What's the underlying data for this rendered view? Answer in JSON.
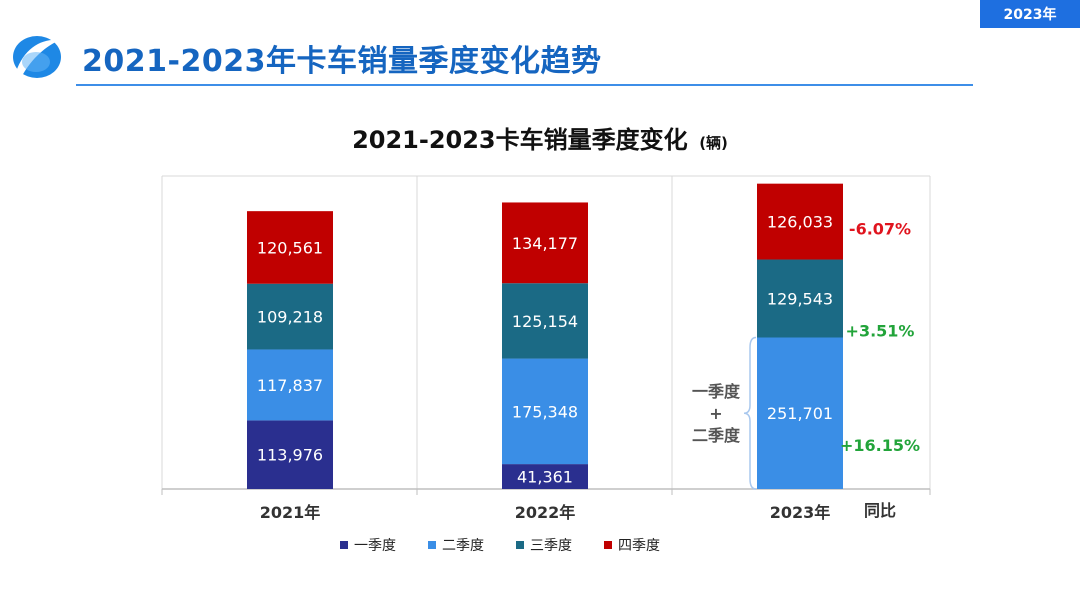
{
  "header": {
    "year_tag": "2023年",
    "page_title": "2021-2023年卡车销量季度变化趋势"
  },
  "colors": {
    "q1": "#2a2f8f",
    "q2": "#3a8ee6",
    "q3": "#1b6a85",
    "q4": "#c00000",
    "accent": "#1565c0",
    "positive": "#22a43a",
    "negative": "#e0141e"
  },
  "chart_data": {
    "type": "bar",
    "stacked": true,
    "title": "2021-2023卡车销量季度变化",
    "unit": "(辆)",
    "categories": [
      "2021年",
      "2022年",
      "2023年"
    ],
    "series": [
      {
        "name": "一季度",
        "values": [
          113976,
          41361,
          null
        ]
      },
      {
        "name": "二季度",
        "values": [
          117837,
          175348,
          null
        ]
      },
      {
        "name": "三季度",
        "values": [
          109218,
          125154,
          129543
        ]
      },
      {
        "name": "四季度",
        "values": [
          120561,
          134177,
          126033
        ]
      }
    ],
    "data_labels": [
      [
        "113,976",
        "117,837",
        "109,218",
        "120,561"
      ],
      [
        "41,361",
        "175,348",
        "125,154",
        "134,177"
      ],
      [
        "",
        "",
        "129,543",
        "126,033"
      ]
    ],
    "combined_2023_h1": {
      "label": "一季度\n+\n二季度",
      "value": 251701,
      "value_label": "251,701"
    },
    "yoy_header": "同比",
    "yoy": {
      "h1": "+16.15%",
      "q3": "+3.51%",
      "q4": "-6.07%"
    },
    "ylim": [
      0,
      520000
    ],
    "grid": false,
    "legend_position": "bottom"
  }
}
